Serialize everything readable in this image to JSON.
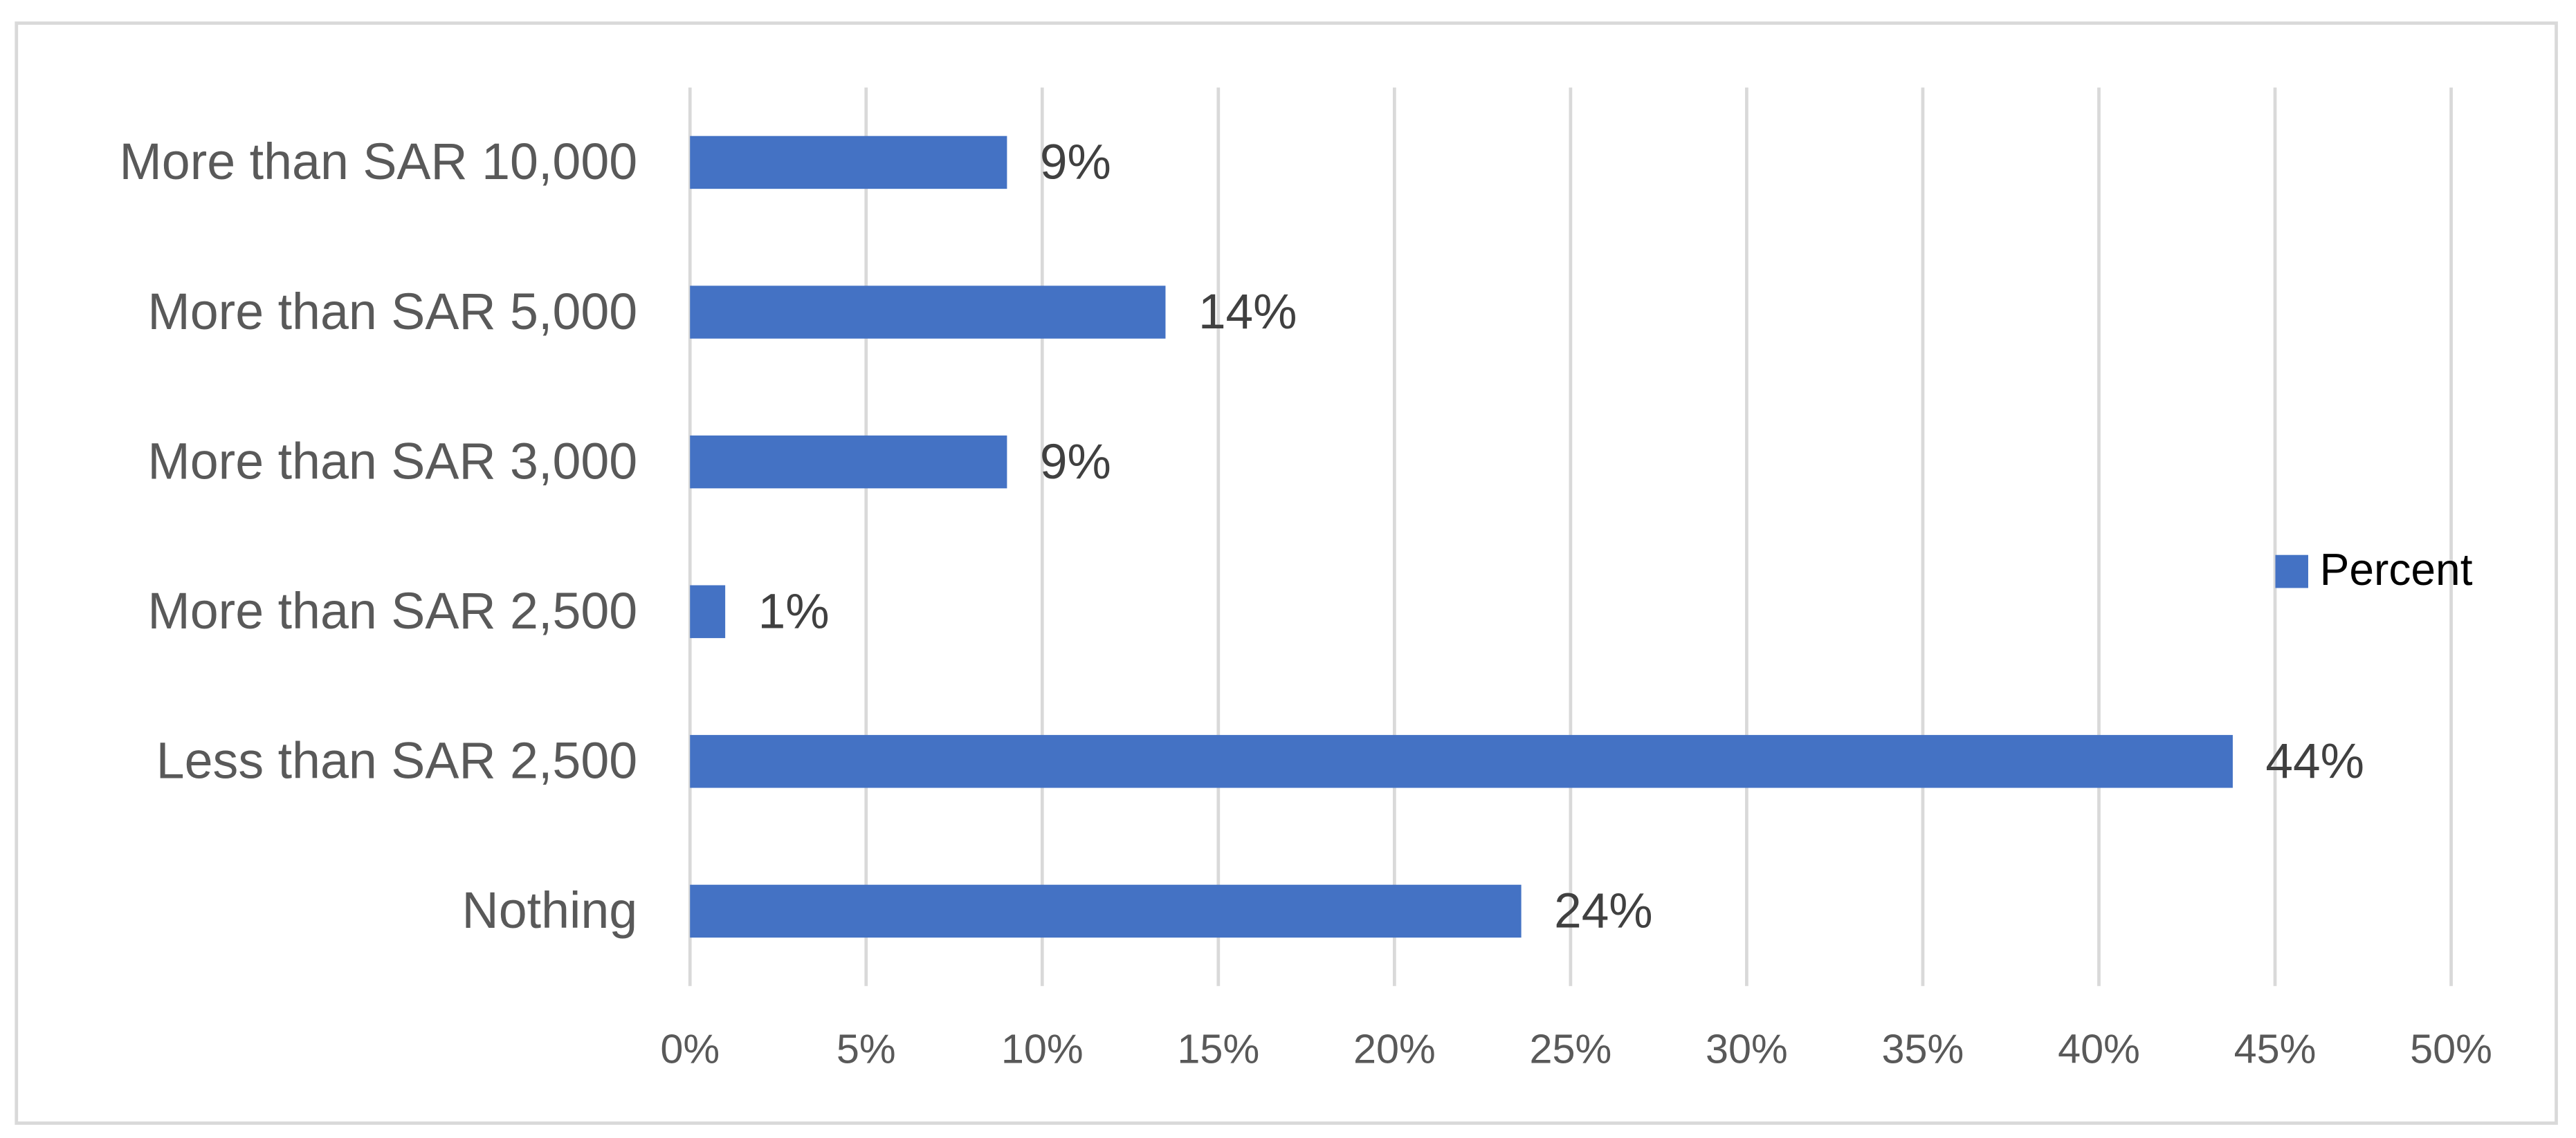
{
  "chart_data": {
    "type": "bar",
    "orientation": "horizontal",
    "categories": [
      "More than SAR 10,000",
      "More than SAR 5,000",
      "More than SAR 3,000",
      "More than SAR 2,500",
      "Less than SAR 2,500",
      "Nothing"
    ],
    "series": [
      {
        "name": "Percent",
        "color": "#4472c4",
        "values": [
          9,
          13.5,
          9,
          1,
          43.8,
          23.6
        ],
        "value_labels": [
          "9%",
          "14%",
          "9%",
          "1%",
          "44%",
          "24%"
        ]
      }
    ],
    "xlim": [
      0,
      50
    ],
    "xticks": [
      {
        "value": 0,
        "label": "0%"
      },
      {
        "value": 5,
        "label": "5%"
      },
      {
        "value": 10,
        "label": "10%"
      },
      {
        "value": 15,
        "label": "15%"
      },
      {
        "value": 20,
        "label": "20%"
      },
      {
        "value": 25,
        "label": "25%"
      },
      {
        "value": 30,
        "label": "30%"
      },
      {
        "value": 35,
        "label": "35%"
      },
      {
        "value": 40,
        "label": "40%"
      },
      {
        "value": 45,
        "label": "45%"
      },
      {
        "value": 50,
        "label": "50%"
      }
    ],
    "grid": true,
    "legend": "right"
  }
}
